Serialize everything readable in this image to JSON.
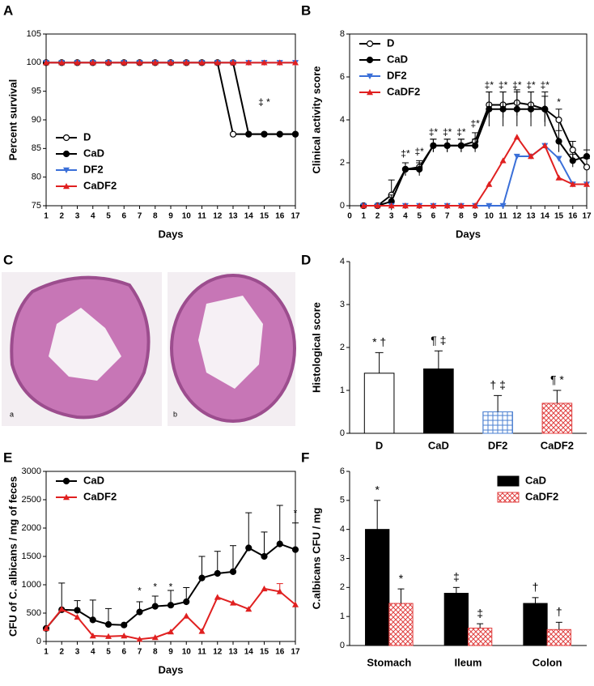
{
  "panel_labels": [
    "A",
    "B",
    "C",
    "D",
    "E",
    "F"
  ],
  "image_labels": [
    "a",
    "b"
  ],
  "chart_data": [
    {
      "type": "line",
      "x": [
        1,
        2,
        3,
        4,
        5,
        6,
        7,
        8,
        9,
        10,
        11,
        12,
        13,
        14,
        15,
        16,
        17
      ],
      "xlim": [
        1,
        17
      ],
      "xticks": [
        1,
        2,
        3,
        4,
        5,
        6,
        7,
        8,
        9,
        10,
        11,
        12,
        13,
        14,
        15,
        16,
        17
      ],
      "ylim": [
        75,
        105
      ],
      "yticks": [
        75,
        80,
        85,
        90,
        95,
        100,
        105
      ],
      "xlabel": "Days",
      "ylabel": "Percent survival",
      "legend": "lower left",
      "frame": true,
      "series": [
        {
          "name": "D",
          "color": "#000000",
          "marker": "open-circle",
          "values": [
            100,
            100,
            100,
            100,
            100,
            100,
            100,
            100,
            100,
            100,
            100,
            100,
            87.5,
            87.5,
            87.5,
            87.5,
            87.5
          ]
        },
        {
          "name": "CaD",
          "color": "#000000",
          "marker": "circle",
          "values": [
            100,
            100,
            100,
            100,
            100,
            100,
            100,
            100,
            100,
            100,
            100,
            100,
            100,
            87.5,
            87.5,
            87.5,
            87.5
          ]
        },
        {
          "name": "DF2",
          "color": "#3a6fd8",
          "marker": "triangle-down",
          "values": [
            100,
            100,
            100,
            100,
            100,
            100,
            100,
            100,
            100,
            100,
            100,
            100,
            100,
            100,
            100,
            100,
            100
          ]
        },
        {
          "name": "CaDF2",
          "color": "#e02020",
          "marker": "triangle",
          "values": [
            100,
            100,
            100,
            100,
            100,
            100,
            100,
            100,
            100,
            100,
            100,
            100,
            100,
            100,
            100,
            100,
            100
          ]
        }
      ],
      "annotations": [
        {
          "text": "‡ *",
          "x": 15,
          "y": 93
        }
      ]
    },
    {
      "type": "line",
      "x": [
        1,
        2,
        3,
        4,
        5,
        6,
        7,
        8,
        9,
        10,
        11,
        12,
        13,
        14,
        15,
        16,
        17
      ],
      "xlim": [
        0,
        17
      ],
      "xticks": [
        0,
        1,
        2,
        3,
        4,
        5,
        6,
        7,
        8,
        9,
        10,
        11,
        12,
        13,
        14,
        15,
        16,
        17
      ],
      "ylim": [
        0,
        8
      ],
      "yticks": [
        0,
        2,
        4,
        6,
        8
      ],
      "xlabel": "Days",
      "ylabel": "Clinical activity score",
      "legend": "upper left",
      "frame": true,
      "error_direction": "both",
      "series": [
        {
          "name": "D",
          "color": "#000000",
          "marker": "open-circle",
          "values": [
            0,
            0,
            0.5,
            1.7,
            1.8,
            2.8,
            2.8,
            2.8,
            3,
            4.7,
            4.7,
            4.8,
            4.7,
            4.5,
            4,
            2.6,
            1.8
          ],
          "errors": [
            0,
            0,
            0.7,
            0.3,
            0.3,
            0.3,
            0.3,
            0.3,
            0.4,
            0.6,
            0.6,
            0.6,
            0.6,
            0.6,
            0.5,
            0.4,
            0.4
          ]
        },
        {
          "name": "CaD",
          "color": "#000000",
          "marker": "circle",
          "values": [
            0,
            0,
            0.2,
            1.7,
            1.7,
            2.8,
            2.8,
            2.8,
            2.8,
            4.5,
            4.5,
            4.5,
            4.5,
            4.5,
            3,
            2.1,
            2.3
          ],
          "errors": [
            0,
            0,
            0.3,
            0.3,
            0.3,
            0.3,
            0.3,
            0.3,
            0.3,
            0.8,
            0.8,
            0.8,
            0.8,
            0.8,
            0.5,
            0.3,
            0.3
          ]
        },
        {
          "name": "DF2",
          "color": "#3a6fd8",
          "marker": "triangle-down",
          "values": [
            0,
            0,
            0,
            0,
            0,
            0,
            0,
            0,
            0,
            0,
            0,
            2.3,
            2.3,
            2.8,
            2.2,
            1,
            1
          ]
        },
        {
          "name": "CaDF2",
          "color": "#e02020",
          "marker": "triangle",
          "values": [
            0,
            0,
            0,
            0,
            0,
            0,
            0,
            0,
            0,
            1,
            2.1,
            3.2,
            2.3,
            2.8,
            1.3,
            1,
            1
          ]
        }
      ],
      "annotations": [
        {
          "text": "‡*",
          "x": 4,
          "y": 2.4
        },
        {
          "text": "‡*",
          "x": 5,
          "y": 2.5
        },
        {
          "text": "‡*",
          "x": 6,
          "y": 3.4
        },
        {
          "text": "‡*",
          "x": 7,
          "y": 3.4
        },
        {
          "text": "‡*",
          "x": 8,
          "y": 3.4
        },
        {
          "text": "‡*",
          "x": 9,
          "y": 3.8
        },
        {
          "text": "‡*",
          "x": 10,
          "y": 5.6
        },
        {
          "text": "‡*",
          "x": 11,
          "y": 5.6
        },
        {
          "text": "‡*",
          "x": 12,
          "y": 5.6
        },
        {
          "text": "‡*",
          "x": 13,
          "y": 5.6
        },
        {
          "text": "‡*",
          "x": 14,
          "y": 5.6
        },
        {
          "text": "*",
          "x": 15,
          "y": 4.8
        }
      ]
    },
    {
      "type": "bar",
      "categories": [
        "D",
        "CaD",
        "DF2",
        "CaDF2"
      ],
      "values": [
        1.4,
        1.5,
        0.5,
        0.7
      ],
      "errors": [
        0.48,
        0.42,
        0.38,
        0.3
      ],
      "colors": [
        "#ffffff",
        "#000000",
        "#4a7fd0",
        "#e04040"
      ],
      "hatch": [
        "none",
        "none",
        "grid",
        "cross"
      ],
      "annotations": [
        "* †",
        "¶ ‡",
        "† ‡",
        "¶ *"
      ],
      "ylim": [
        0,
        4
      ],
      "yticks": [
        0,
        1,
        2,
        3,
        4
      ],
      "ylabel": "Histological score",
      "frame": false
    },
    {
      "type": "line",
      "x": [
        1,
        2,
        3,
        4,
        5,
        6,
        7,
        8,
        9,
        10,
        11,
        12,
        13,
        14,
        15,
        16,
        17
      ],
      "xlim": [
        1,
        17
      ],
      "xticks": [
        1,
        2,
        3,
        4,
        5,
        6,
        7,
        8,
        9,
        10,
        11,
        12,
        13,
        14,
        15,
        16,
        17
      ],
      "ylim": [
        0,
        3000
      ],
      "yticks": [
        0,
        500,
        1000,
        1500,
        2000,
        2500,
        3000
      ],
      "xlabel": "Days",
      "ylabel": "CFU of C. albicans / mg of feces",
      "legend": "upper left",
      "frame": true,
      "error_direction": "up",
      "series": [
        {
          "name": "CaD",
          "color": "#000000",
          "marker": "circle",
          "values": [
            230,
            560,
            550,
            380,
            300,
            290,
            520,
            620,
            640,
            700,
            1120,
            1200,
            1230,
            1650,
            1500,
            1720,
            1620
          ],
          "errors": [
            0,
            470,
            170,
            350,
            280,
            0,
            180,
            180,
            260,
            250,
            380,
            390,
            460,
            620,
            430,
            680,
            470
          ]
        },
        {
          "name": "CaDF2",
          "color": "#e02020",
          "marker": "triangle",
          "values": [
            230,
            570,
            430,
            100,
            90,
            100,
            40,
            70,
            170,
            450,
            180,
            780,
            680,
            570,
            930,
            880,
            650
          ],
          "errors": [
            0,
            0,
            0,
            0,
            0,
            0,
            0,
            0,
            0,
            0,
            0,
            0,
            0,
            0,
            0,
            140,
            0
          ]
        }
      ],
      "annotations": [
        {
          "text": "*",
          "x": 7,
          "y": 880
        },
        {
          "text": "*",
          "x": 8,
          "y": 950
        },
        {
          "text": "*",
          "x": 9,
          "y": 950
        },
        {
          "text": "*",
          "x": 17,
          "y": 2250
        }
      ]
    },
    {
      "type": "grouped-bar",
      "categories": [
        "Stomach",
        "Ileum",
        "Colon"
      ],
      "ylim": [
        0,
        6
      ],
      "yticks": [
        0,
        1,
        2,
        3,
        4,
        5,
        6
      ],
      "ylabel": "C.albicans CFU / mg",
      "legend": "upper right",
      "frame": false,
      "series": [
        {
          "name": "CaD",
          "color": "#000000",
          "hatch": "none",
          "values": [
            4.0,
            1.8,
            1.45
          ],
          "errors": [
            1.0,
            0.2,
            0.2
          ],
          "annotations": [
            "*",
            "‡",
            "†"
          ]
        },
        {
          "name": "CaDF2",
          "color": "#e04040",
          "hatch": "cross",
          "values": [
            1.45,
            0.6,
            0.55
          ],
          "errors": [
            0.5,
            0.15,
            0.25
          ],
          "annotations": [
            "*",
            "‡",
            "†"
          ]
        }
      ]
    }
  ]
}
